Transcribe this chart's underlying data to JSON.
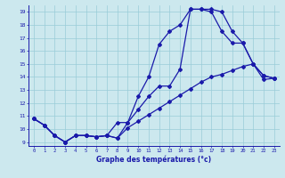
{
  "xlabel": "Graphe des températures (°c)",
  "x": [
    0,
    1,
    2,
    3,
    4,
    5,
    6,
    7,
    8,
    9,
    10,
    11,
    12,
    13,
    14,
    15,
    16,
    17,
    18,
    19,
    20,
    21,
    22,
    23
  ],
  "line1": [
    10.8,
    10.3,
    9.5,
    9.0,
    9.5,
    9.5,
    9.4,
    9.5,
    9.3,
    10.5,
    11.5,
    12.5,
    13.3,
    13.3,
    14.6,
    19.2,
    19.2,
    19.2,
    19.0,
    17.5,
    16.6,
    15.0,
    14.1,
    13.9
  ],
  "line2": [
    10.8,
    10.3,
    9.5,
    9.0,
    9.5,
    9.5,
    9.4,
    9.5,
    10.5,
    10.5,
    12.5,
    14.0,
    16.5,
    17.5,
    18.0,
    19.2,
    19.2,
    19.0,
    17.5,
    16.6,
    16.6,
    15.0,
    14.1,
    13.9
  ],
  "line3": [
    10.8,
    10.3,
    9.5,
    9.0,
    9.5,
    9.5,
    9.4,
    9.5,
    9.3,
    10.1,
    10.6,
    11.1,
    11.6,
    12.1,
    12.6,
    13.1,
    13.6,
    14.0,
    14.2,
    14.5,
    14.8,
    15.0,
    13.8,
    13.9
  ],
  "line_color": "#1a1aaa",
  "bg_color": "#cce8ee",
  "grid_color": "#99ccd8",
  "yticks": [
    9,
    10,
    11,
    12,
    13,
    14,
    15,
    16,
    17,
    18,
    19
  ],
  "xticks": [
    0,
    1,
    2,
    3,
    4,
    5,
    6,
    7,
    8,
    9,
    10,
    11,
    12,
    13,
    14,
    15,
    16,
    17,
    18,
    19,
    20,
    21,
    22,
    23
  ]
}
